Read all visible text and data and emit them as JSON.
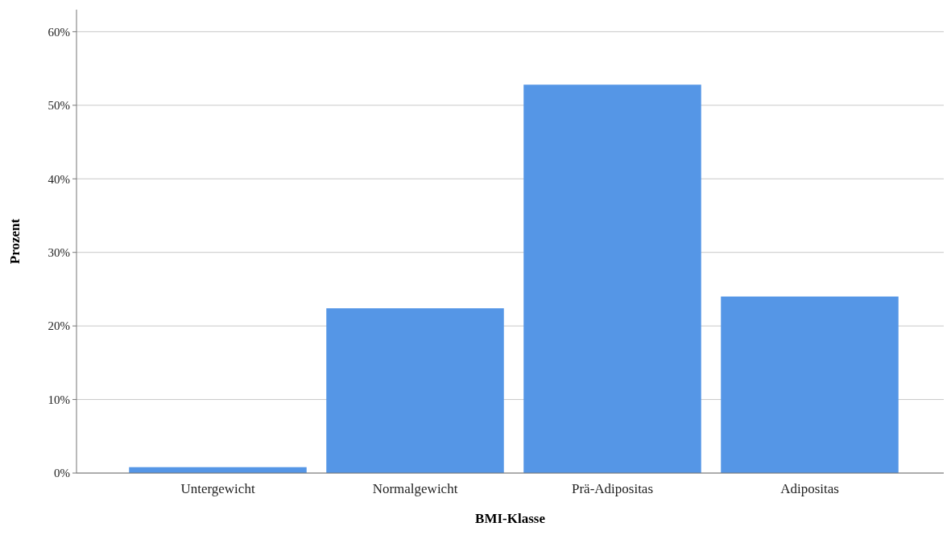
{
  "chart_data": {
    "type": "bar",
    "xlabel": "BMI-Klasse",
    "ylabel": "Prozent",
    "categories": [
      "Untergewicht",
      "Normalgewicht",
      "Prä-Adipositas",
      "Adipositas"
    ],
    "values": [
      0.8,
      22.4,
      52.8,
      24.0
    ],
    "color": "#5596e6",
    "ylim": [
      0,
      63
    ],
    "yticks": [
      {
        "value": 0,
        "label": "0%"
      },
      {
        "value": 10,
        "label": "10%"
      },
      {
        "value": 20,
        "label": "20%"
      },
      {
        "value": 30,
        "label": "30%"
      },
      {
        "value": 40,
        "label": "40%"
      },
      {
        "value": 50,
        "label": "50%"
      },
      {
        "value": 60,
        "label": "60%"
      }
    ],
    "grid": "y"
  }
}
